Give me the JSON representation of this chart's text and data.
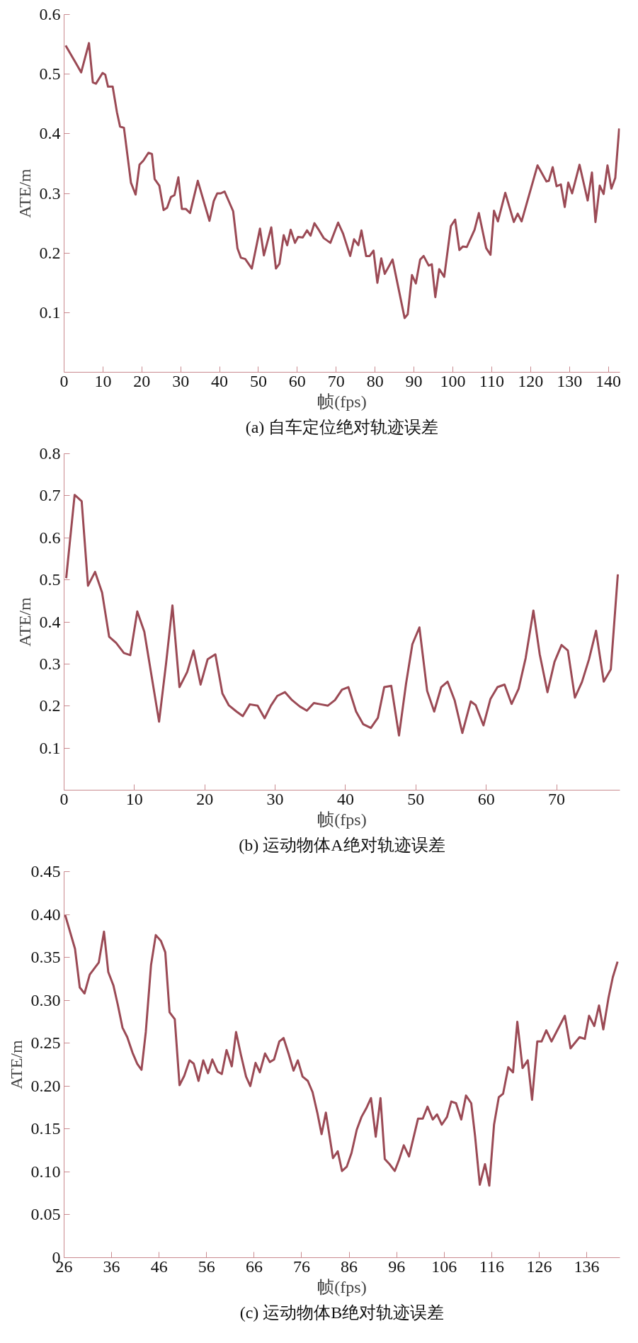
{
  "chart_data": [
    {
      "type": "line",
      "xlabel": "帧(fps)",
      "ylabel": "ATE/m",
      "annotations": [
        "(a) 自车定位绝对轨迹误差"
      ],
      "xlim": [
        0,
        143
      ],
      "ylim": [
        0,
        0.6
      ],
      "xticks": [
        0,
        10,
        20,
        30,
        40,
        50,
        60,
        70,
        80,
        90,
        100,
        110,
        120,
        130,
        140
      ],
      "yticks": [
        0.1,
        0.2,
        0.3,
        0.4,
        0.5,
        0.6
      ],
      "series": [
        {
          "color": "#9b4a55",
          "x": [
            0.4,
            3,
            4.4,
            6.4,
            7.4,
            8.2,
            9.9,
            10.6,
            11.3,
            12.5,
            13.6,
            14.4,
            15.4,
            16.3,
            17.2,
            18.4,
            19.4,
            20.4,
            21.7,
            22.6,
            23.3,
            24.5,
            25.6,
            26.5,
            27.5,
            28.4,
            29.4,
            30.3,
            31.3,
            32.4,
            34.4,
            37.4,
            38.5,
            39.4,
            40.3,
            41.3,
            43.5,
            44.6,
            45.5,
            46.6,
            48.3,
            50.4,
            51.4,
            53.3,
            54.5,
            55.4,
            56.5,
            57.4,
            58.3,
            59.4,
            60.2,
            61.4,
            62.5,
            63.4,
            64.4,
            65.6,
            66.8,
            68.5,
            70.5,
            71.8,
            73.6,
            74.6,
            75.7,
            76.5,
            77.7,
            78.6,
            79.6,
            80.6,
            81.6,
            82.5,
            84.5,
            87.6,
            88.4,
            89.5,
            90.5,
            91.6,
            92.5,
            93.8,
            94.6,
            95.5,
            96.5,
            97.8,
            99.5,
            100.6,
            101.7,
            102.6,
            103.6,
            105.6,
            106.7,
            108.6,
            109.7,
            110.6,
            111.6,
            113.5,
            115.7,
            116.7,
            117.7,
            121.8,
            124.1,
            124.7,
            125.7,
            126.7,
            127.8,
            128.8,
            129.7,
            130.7,
            132.6,
            134.7,
            135.8,
            136.7,
            137.8,
            138.8,
            139.8,
            140.8,
            141.8,
            142.8
          ],
          "values": [
            0.548,
            0.519,
            0.503,
            0.552,
            0.486,
            0.484,
            0.502,
            0.499,
            0.479,
            0.479,
            0.436,
            0.412,
            0.41,
            0.364,
            0.318,
            0.298,
            0.348,
            0.355,
            0.368,
            0.366,
            0.324,
            0.313,
            0.272,
            0.276,
            0.294,
            0.297,
            0.327,
            0.274,
            0.274,
            0.267,
            0.321,
            0.254,
            0.287,
            0.3,
            0.3,
            0.303,
            0.27,
            0.208,
            0.192,
            0.19,
            0.174,
            0.241,
            0.196,
            0.243,
            0.174,
            0.182,
            0.23,
            0.213,
            0.239,
            0.217,
            0.227,
            0.226,
            0.238,
            0.229,
            0.25,
            0.238,
            0.225,
            0.217,
            0.251,
            0.232,
            0.195,
            0.223,
            0.213,
            0.238,
            0.195,
            0.195,
            0.204,
            0.15,
            0.191,
            0.165,
            0.189,
            0.091,
            0.097,
            0.163,
            0.149,
            0.189,
            0.195,
            0.179,
            0.181,
            0.126,
            0.173,
            0.16,
            0.245,
            0.256,
            0.205,
            0.211,
            0.21,
            0.239,
            0.267,
            0.208,
            0.197,
            0.271,
            0.253,
            0.301,
            0.252,
            0.266,
            0.253,
            0.347,
            0.32,
            0.321,
            0.344,
            0.312,
            0.315,
            0.277,
            0.318,
            0.3,
            0.348,
            0.288,
            0.335,
            0.252,
            0.313,
            0.299,
            0.347,
            0.308,
            0.326,
            0.409
          ]
        }
      ]
    },
    {
      "type": "line",
      "xlabel": "帧(fps)",
      "ylabel": "ATE/m",
      "annotations": [
        "(b) 运动物体A绝对轨迹误差"
      ],
      "xlim": [
        0,
        79
      ],
      "ylim": [
        0,
        0.8
      ],
      "xticks": [
        0,
        10,
        20,
        30,
        40,
        50,
        60,
        70
      ],
      "yticks": [
        0.1,
        0.2,
        0.3,
        0.4,
        0.5,
        0.6,
        0.7,
        0.8
      ],
      "series": [
        {
          "color": "#9b4a55",
          "x": [
            0.3,
            1.5,
            2.5,
            3.4,
            4.4,
            5.4,
            6.4,
            7.4,
            8.5,
            9.4,
            10.4,
            11.4,
            13.5,
            14.5,
            15.4,
            16.4,
            17.5,
            18.4,
            19.4,
            20.4,
            21.5,
            22.5,
            23.4,
            24.5,
            25.4,
            26.4,
            27.5,
            28.5,
            29.4,
            30.3,
            31.4,
            32.4,
            33.5,
            34.5,
            35.5,
            36.5,
            37.5,
            38.5,
            39.5,
            40.4,
            41.5,
            42.5,
            43.6,
            44.6,
            45.5,
            46.5,
            47.6,
            48.6,
            49.5,
            50.5,
            51.6,
            52.6,
            53.6,
            54.5,
            55.5,
            56.6,
            57.8,
            58.5,
            59.6,
            60.6,
            61.6,
            62.6,
            63.6,
            64.6,
            65.6,
            66.7,
            67.6,
            68.7,
            69.7,
            70.7,
            71.6,
            72.6,
            73.6,
            74.6,
            75.6,
            76.7,
            77.7,
            78.7
          ],
          "values": [
            0.504,
            0.702,
            0.687,
            0.486,
            0.519,
            0.47,
            0.365,
            0.35,
            0.326,
            0.321,
            0.425,
            0.377,
            0.163,
            0.302,
            0.439,
            0.245,
            0.281,
            0.332,
            0.251,
            0.311,
            0.323,
            0.23,
            0.202,
            0.187,
            0.176,
            0.204,
            0.201,
            0.171,
            0.201,
            0.224,
            0.233,
            0.214,
            0.199,
            0.189,
            0.207,
            0.204,
            0.201,
            0.214,
            0.239,
            0.245,
            0.187,
            0.157,
            0.148,
            0.172,
            0.245,
            0.248,
            0.13,
            0.253,
            0.347,
            0.387,
            0.236,
            0.187,
            0.245,
            0.258,
            0.214,
            0.136,
            0.211,
            0.202,
            0.154,
            0.217,
            0.245,
            0.251,
            0.205,
            0.241,
            0.314,
            0.427,
            0.323,
            0.233,
            0.305,
            0.345,
            0.332,
            0.22,
            0.257,
            0.311,
            0.379,
            0.258,
            0.287,
            0.513
          ]
        }
      ]
    },
    {
      "type": "line",
      "xlabel": "帧(fps)",
      "ylabel": "ATE/m",
      "annotations": [
        "(c) 运动物体B绝对轨迹误差"
      ],
      "xlim": [
        26,
        143
      ],
      "ylim": [
        0,
        0.45
      ],
      "xticks": [
        26,
        36,
        46,
        56,
        66,
        76,
        86,
        96,
        106,
        116,
        126,
        136
      ],
      "yticks": [
        0,
        0.05,
        {
          "value": 0.1,
          "label": "0.10"
        },
        0.15,
        {
          "value": 0.2,
          "label": "0.20"
        },
        0.25,
        {
          "value": 0.3,
          "label": "0.30"
        },
        0.35,
        {
          "value": 0.4,
          "label": "0.40"
        },
        0.45
      ],
      "series": [
        {
          "color": "#9b4a55",
          "x": [
            26.2,
            28.3,
            29.3,
            30.3,
            31.4,
            33.3,
            34.4,
            35.3,
            36.4,
            37.3,
            38.3,
            39.3,
            40.4,
            41.4,
            42.3,
            43.2,
            44.3,
            45.3,
            46.4,
            47.3,
            48.2,
            49.3,
            50.3,
            51.3,
            52.4,
            53.3,
            54.3,
            55.3,
            56.3,
            57.2,
            58.3,
            59.2,
            60.2,
            61.3,
            62.2,
            63.2,
            64.3,
            65.2,
            66.3,
            67.2,
            68.3,
            69.3,
            70.2,
            71.3,
            72.2,
            73.3,
            74.3,
            75.2,
            76.2,
            77.3,
            78.3,
            79.3,
            80.2,
            81.1,
            82.6,
            83.6,
            84.5,
            85.5,
            86.5,
            87.6,
            88.6,
            89.6,
            90.6,
            91.6,
            92.6,
            93.5,
            94.5,
            95.6,
            96.5,
            97.5,
            98.6,
            100.5,
            101.5,
            102.5,
            103.6,
            104.5,
            105.5,
            106.6,
            107.5,
            108.5,
            109.6,
            110.6,
            111.7,
            112.5,
            113.5,
            114.6,
            115.5,
            116.5,
            117.5,
            118.4,
            119.5,
            120.5,
            121.4,
            122.5,
            123.6,
            124.5,
            125.6,
            126.5,
            127.5,
            128.6,
            131.4,
            132.6,
            134.5,
            135.6,
            136.5,
            137.6,
            138.6,
            139.5,
            140.6,
            141.5,
            142.5
          ],
          "values": [
            0.4,
            0.36,
            0.315,
            0.308,
            0.33,
            0.344,
            0.38,
            0.333,
            0.317,
            0.295,
            0.268,
            0.257,
            0.239,
            0.226,
            0.219,
            0.263,
            0.341,
            0.376,
            0.369,
            0.356,
            0.286,
            0.278,
            0.201,
            0.212,
            0.23,
            0.226,
            0.206,
            0.23,
            0.215,
            0.231,
            0.217,
            0.214,
            0.242,
            0.223,
            0.263,
            0.237,
            0.211,
            0.2,
            0.227,
            0.216,
            0.238,
            0.228,
            0.231,
            0.252,
            0.256,
            0.237,
            0.218,
            0.23,
            0.211,
            0.206,
            0.193,
            0.169,
            0.144,
            0.169,
            0.116,
            0.124,
            0.101,
            0.106,
            0.122,
            0.149,
            0.164,
            0.174,
            0.186,
            0.141,
            0.186,
            0.115,
            0.109,
            0.101,
            0.114,
            0.131,
            0.118,
            0.162,
            0.162,
            0.176,
            0.161,
            0.167,
            0.155,
            0.164,
            0.182,
            0.18,
            0.161,
            0.189,
            0.18,
            0.142,
            0.085,
            0.109,
            0.084,
            0.155,
            0.187,
            0.191,
            0.222,
            0.216,
            0.275,
            0.221,
            0.23,
            0.184,
            0.252,
            0.252,
            0.265,
            0.252,
            0.282,
            0.244,
            0.257,
            0.255,
            0.282,
            0.27,
            0.294,
            0.266,
            0.303,
            0.327,
            0.345
          ]
        }
      ]
    }
  ]
}
